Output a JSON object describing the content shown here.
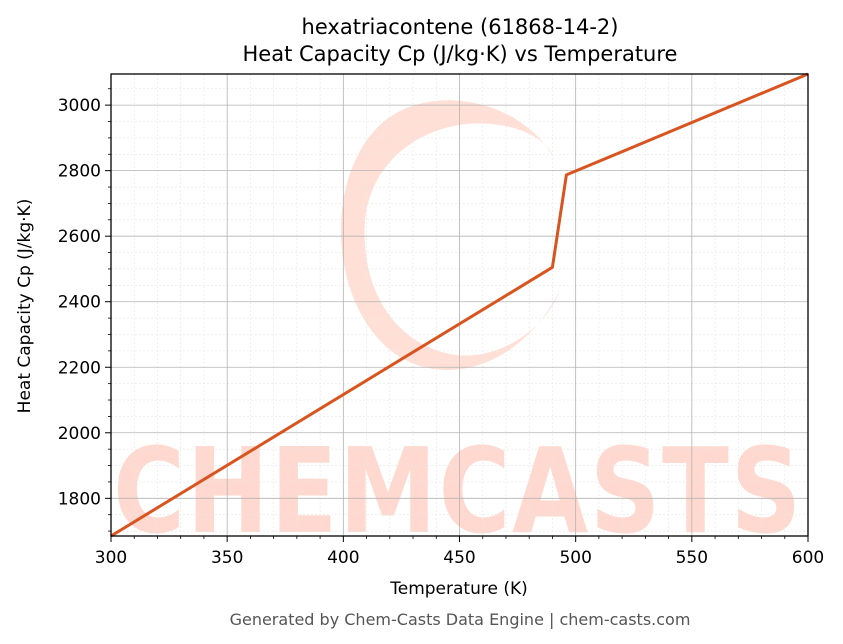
{
  "chart_data": {
    "type": "line",
    "title": "hexatriacontene (61868-14-2)",
    "subtitle": "Heat Capacity Cp (J/kg·K) vs Temperature",
    "xlabel": "Temperature (K)",
    "ylabel": "Heat Capacity Cp (J/kg·K)",
    "xlim": [
      300,
      600
    ],
    "ylim": [
      1685,
      3095
    ],
    "x_ticks": [
      300,
      350,
      400,
      450,
      500,
      550,
      600
    ],
    "y_ticks": [
      1800,
      2000,
      2200,
      2400,
      2600,
      2800,
      3000
    ],
    "grid": true,
    "series": [
      {
        "color": "#d9541e",
        "x": [
          300,
          490,
          496,
          600
        ],
        "y": [
          1685,
          2505,
          2787,
          3095
        ]
      }
    ]
  },
  "watermark": {
    "text": "CHEMCASTS",
    "color": "#ffd9cf"
  },
  "footer": "Generated by Chem-Casts Data Engine | chem-casts.com"
}
